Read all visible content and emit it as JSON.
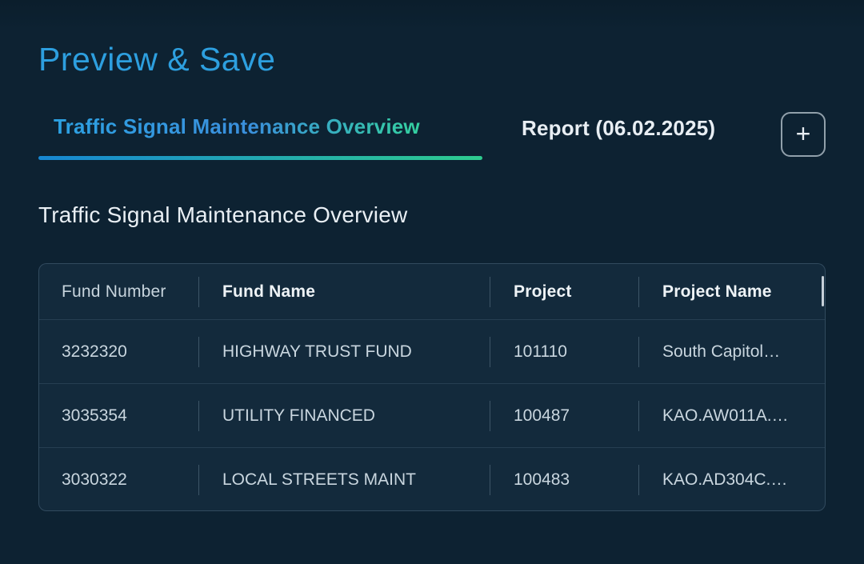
{
  "page_title": "Preview & Save",
  "tabs": {
    "active": {
      "label": "Traffic Signal Maintenance Overview"
    },
    "inactive": {
      "label": "Report (06.02.2025)"
    },
    "add_button": "+"
  },
  "section": {
    "title": "Traffic Signal Maintenance Overview"
  },
  "table": {
    "columns": [
      "Fund Number",
      "Fund Name",
      "Project",
      "Project Name"
    ],
    "rows": [
      [
        "3232320",
        "HIGHWAY TRUST FUND",
        "101110",
        "South Capitol…"
      ],
      [
        "3035354",
        "UTILITY FINANCED",
        "100487",
        "KAO.AW011A.…"
      ],
      [
        "3030322",
        "LOCAL STREETS MAINT",
        "100483",
        "KAO.AD304C.…"
      ]
    ]
  },
  "colors": {
    "background": "#0d2232",
    "table_background": "#132a3c",
    "title_blue": "#2d9fdf",
    "tab_gradient_start": "#2ba3e3",
    "tab_gradient_end": "#34d1a0",
    "underline_gradient_start": "#1787d2",
    "underline_gradient_end": "#2ecb8f",
    "text_light": "#e9eff4",
    "text_body": "#c9d6df"
  }
}
